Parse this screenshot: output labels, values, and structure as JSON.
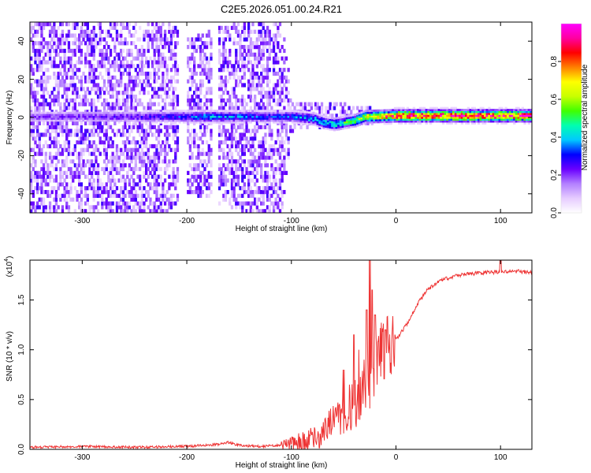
{
  "title": "C2E5.2026.051.00.24.R21",
  "chart_data": [
    {
      "type": "heatmap",
      "name": "spectrogram",
      "xlabel": "Height of straight line (km)",
      "ylabel": "Frequency (Hz)",
      "xlim": [
        -350,
        130
      ],
      "ylim": [
        -50,
        50
      ],
      "xticks": [
        -300,
        -200,
        -100,
        0,
        100
      ],
      "xtick_labels": [
        "-300",
        "-200",
        "-100",
        "0",
        "100"
      ],
      "yticks": [
        -40,
        -20,
        0,
        20,
        40
      ],
      "ytick_labels": [
        "-40",
        "-20",
        "0",
        "20",
        "40"
      ],
      "colorbar": {
        "label": "Normalized spectral amplitude",
        "range": [
          0,
          1
        ],
        "ticks": [
          0.0,
          0.2,
          0.4,
          0.6,
          0.8
        ],
        "tick_labels": [
          "0.0",
          "0.2",
          "0.4",
          "0.6",
          "0.8"
        ],
        "colors": [
          "#ffffff",
          "#e6ccff",
          "#b380ff",
          "#6a00ff",
          "#0000ff",
          "#00c8ff",
          "#00ffb0",
          "#40ff00",
          "#c8ff00",
          "#ffff00",
          "#ff8000",
          "#ff0000",
          "#ff00a0",
          "#ff00ff"
        ]
      },
      "signal_center_hz": [
        [
          -350,
          0
        ],
        [
          -200,
          0
        ],
        [
          -120,
          0
        ],
        [
          -100,
          0
        ],
        [
          -80,
          -1
        ],
        [
          -70,
          -3
        ],
        [
          -60,
          -4
        ],
        [
          -50,
          -3
        ],
        [
          -40,
          -2
        ],
        [
          -30,
          0
        ],
        [
          0,
          0.5
        ],
        [
          130,
          0.5
        ]
      ],
      "signal_amplitude": [
        [
          -350,
          0.2
        ],
        [
          -250,
          0.25
        ],
        [
          -210,
          0.3
        ],
        [
          -180,
          0.4
        ],
        [
          -150,
          0.35
        ],
        [
          -120,
          0.3
        ],
        [
          -100,
          0.35
        ],
        [
          -70,
          0.45
        ],
        [
          -50,
          0.5
        ],
        [
          -30,
          0.65
        ],
        [
          -10,
          0.8
        ],
        [
          0,
          0.9
        ],
        [
          130,
          0.9
        ]
      ],
      "noise_extent_hz": [
        [
          -350,
          50
        ],
        [
          -220,
          50
        ],
        [
          -200,
          40
        ],
        [
          -150,
          50
        ],
        [
          -110,
          50
        ],
        [
          -100,
          8
        ],
        [
          -60,
          7
        ],
        [
          -40,
          5
        ],
        [
          0,
          3
        ],
        [
          130,
          3
        ]
      ]
    },
    {
      "type": "line",
      "name": "snr",
      "xlabel": "Height of straight line (km)",
      "ylabel": "SNR (10 * v/v)",
      "y_multiplier": "(x10",
      "y_multiplier_exp": "4",
      "y_multiplier_close": ")",
      "xlim": [
        -350,
        130
      ],
      "ylim": [
        0,
        1.9
      ],
      "xticks": [
        -300,
        -200,
        -100,
        0,
        100
      ],
      "xtick_labels": [
        "-300",
        "-200",
        "-100",
        "0",
        "100"
      ],
      "yticks": [
        0.0,
        0.5,
        1.0,
        1.5
      ],
      "ytick_labels": [
        "0.0",
        "0.5",
        "1.0",
        "1.5"
      ],
      "color": "#ee3333",
      "series": [
        {
          "name": "SNR",
          "x": [
            -350,
            -300,
            -250,
            -200,
            -170,
            -160,
            -150,
            -130,
            -110,
            -100,
            -90,
            -80,
            -70,
            -60,
            -50,
            -40,
            -35,
            -30,
            -25,
            -20,
            -15,
            -10,
            -5,
            0,
            10,
            20,
            30,
            40,
            50,
            60,
            80,
            95,
            100,
            110,
            130
          ],
          "y": [
            0.02,
            0.03,
            0.02,
            0.03,
            0.05,
            0.07,
            0.04,
            0.03,
            0.04,
            0.05,
            0.08,
            0.12,
            0.17,
            0.25,
            0.33,
            0.45,
            0.5,
            0.58,
            0.68,
            0.85,
            0.95,
            1.0,
            1.05,
            1.1,
            1.25,
            1.45,
            1.6,
            1.68,
            1.72,
            1.75,
            1.77,
            1.78,
            1.79,
            1.79,
            1.78
          ]
        }
      ],
      "spikes": [
        [
          -50,
          0.8
        ],
        [
          -45,
          0.65
        ],
        [
          -40,
          1.15
        ],
        [
          -35,
          1.0
        ],
        [
          -30,
          0.9
        ],
        [
          -28,
          1.4
        ],
        [
          -25,
          1.9
        ],
        [
          -23,
          1.6
        ],
        [
          -20,
          1.35
        ],
        [
          -15,
          1.25
        ],
        [
          -10,
          1.2
        ],
        [
          100,
          1.92
        ]
      ]
    }
  ]
}
